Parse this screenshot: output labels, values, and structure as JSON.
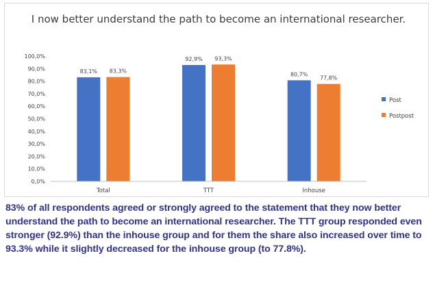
{
  "chart_data": {
    "type": "bar",
    "title": "I now better understand the path to become an international researcher.",
    "categories": [
      "Total",
      "TTT",
      "Inhouse"
    ],
    "series": [
      {
        "name": "Post",
        "values": [
          83.1,
          92.9,
          80.7
        ],
        "labels": [
          "83,1%",
          "92,9%",
          "80,7%"
        ],
        "color": "#4472c4"
      },
      {
        "name": "Postpost",
        "values": [
          83.3,
          93.3,
          77.8
        ],
        "labels": [
          "83,3%",
          "93,3%",
          "77,8%"
        ],
        "color": "#ed7d31"
      }
    ],
    "ylim": [
      0,
      100
    ],
    "yticks": [
      0,
      10,
      20,
      30,
      40,
      50,
      60,
      70,
      80,
      90,
      100
    ],
    "ytick_labels": [
      "0,0%",
      "10,0%",
      "20,0%",
      "30,0%",
      "40,0%",
      "50,0%",
      "60,0%",
      "70,0%",
      "80,0%",
      "90,0%",
      "100,0%"
    ],
    "xlabel": "",
    "ylabel": "",
    "legend": "right",
    "grid": false
  },
  "caption": "83% of all respondents agreed or strongly agreed to the statement that they now better understand the path to become an international researcher. The TTT group responded even stronger (92.9%) than the inhouse group and for them the share also increased over time to 93.3% while it slightly decreased for the inhouse group (to 77.8%).",
  "colors": {
    "caption_text": "#2f3193",
    "axis": "#bfbfbf"
  }
}
